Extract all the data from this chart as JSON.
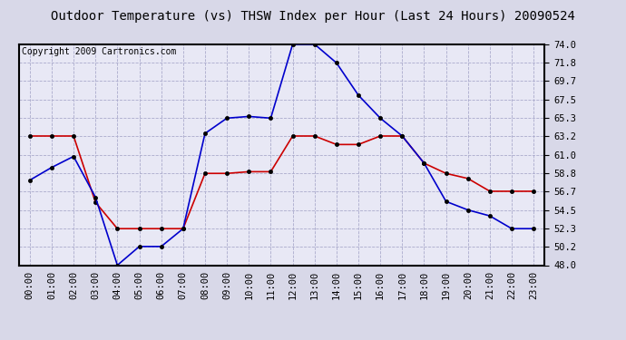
{
  "title": "Outdoor Temperature (vs) THSW Index per Hour (Last 24 Hours) 20090524",
  "copyright": "Copyright 2009 Cartronics.com",
  "hours": [
    "00:00",
    "01:00",
    "02:00",
    "03:00",
    "04:00",
    "05:00",
    "06:00",
    "07:00",
    "08:00",
    "09:00",
    "10:00",
    "11:00",
    "12:00",
    "13:00",
    "14:00",
    "15:00",
    "16:00",
    "17:00",
    "18:00",
    "19:00",
    "20:00",
    "21:00",
    "22:00",
    "23:00"
  ],
  "temp_red": [
    63.2,
    63.2,
    63.2,
    55.4,
    52.3,
    52.3,
    52.3,
    52.3,
    58.8,
    58.8,
    59.0,
    59.0,
    63.2,
    63.2,
    62.2,
    62.2,
    63.2,
    63.2,
    60.0,
    58.8,
    58.2,
    56.7,
    56.7,
    56.7
  ],
  "thsw_blue": [
    58.0,
    59.5,
    60.8,
    56.0,
    48.0,
    50.2,
    50.2,
    52.3,
    63.5,
    65.3,
    65.5,
    65.3,
    74.0,
    74.0,
    71.8,
    68.0,
    65.3,
    63.2,
    60.0,
    55.5,
    54.5,
    53.8,
    52.3,
    52.3
  ],
  "ylim": [
    48.0,
    74.0
  ],
  "yticks": [
    48.0,
    50.2,
    52.3,
    54.5,
    56.7,
    58.8,
    61.0,
    63.2,
    65.3,
    67.5,
    69.7,
    71.8,
    74.0
  ],
  "line_color_red": "#cc0000",
  "line_color_blue": "#0000cc",
  "bg_color": "#e8e8f0",
  "plot_bg_color": "#e8e8f5",
  "grid_color": "#aaaacc",
  "title_fontsize": 10,
  "copyright_fontsize": 7,
  "tick_fontsize": 7.5
}
